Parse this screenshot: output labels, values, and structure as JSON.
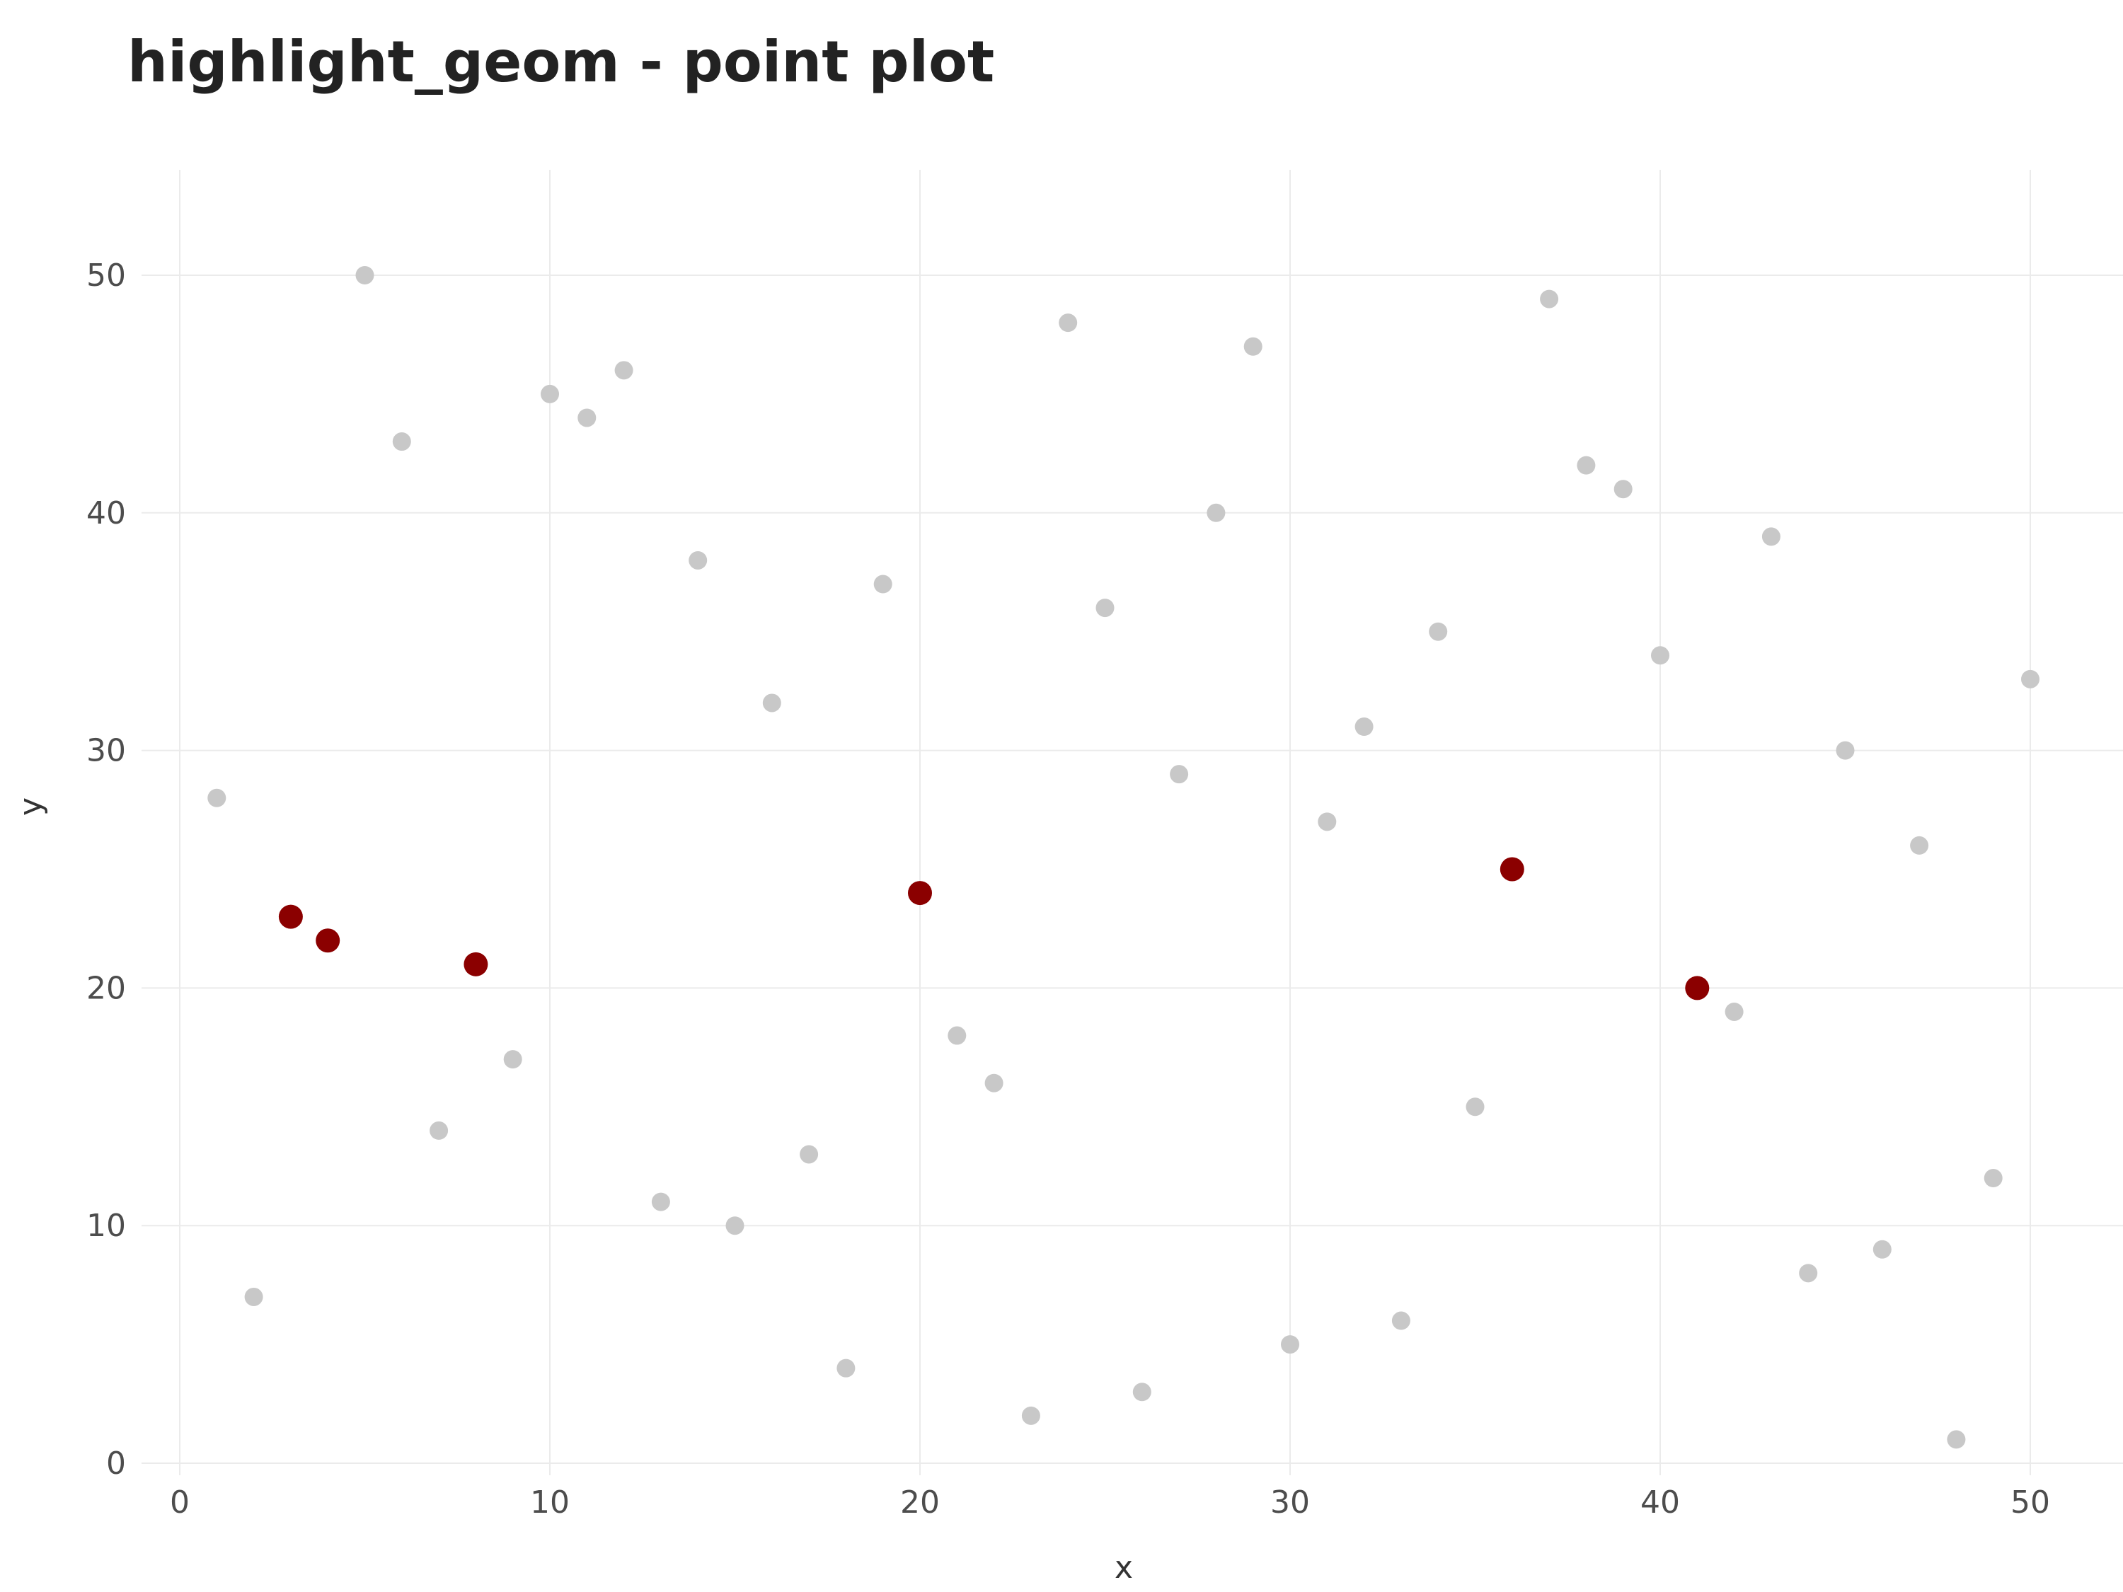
{
  "chart_data": {
    "type": "scatter",
    "title": "highlight_geom - point plot",
    "xlabel": "x",
    "ylabel": "y",
    "xlim": [
      -1,
      52
    ],
    "ylim": [
      0,
      52
    ],
    "x_ticks": [
      0,
      10,
      20,
      30,
      40,
      50
    ],
    "y_ticks": [
      0,
      10,
      20,
      30,
      40,
      50
    ],
    "grid": true,
    "colors": {
      "base": "#c8c8c8",
      "highlight": "#8b0000"
    },
    "highlighted_x": [
      3,
      4,
      8,
      20,
      36,
      41
    ],
    "points": [
      {
        "x": 1,
        "y": 28
      },
      {
        "x": 2,
        "y": 7
      },
      {
        "x": 3,
        "y": 23
      },
      {
        "x": 4,
        "y": 22
      },
      {
        "x": 5,
        "y": 50
      },
      {
        "x": 6,
        "y": 43
      },
      {
        "x": 7,
        "y": 14
      },
      {
        "x": 8,
        "y": 21
      },
      {
        "x": 9,
        "y": 17
      },
      {
        "x": 10,
        "y": 45
      },
      {
        "x": 11,
        "y": 44
      },
      {
        "x": 12,
        "y": 46
      },
      {
        "x": 13,
        "y": 11
      },
      {
        "x": 14,
        "y": 38
      },
      {
        "x": 15,
        "y": 10
      },
      {
        "x": 16,
        "y": 32
      },
      {
        "x": 17,
        "y": 13
      },
      {
        "x": 18,
        "y": 4
      },
      {
        "x": 19,
        "y": 37
      },
      {
        "x": 20,
        "y": 24
      },
      {
        "x": 21,
        "y": 18
      },
      {
        "x": 22,
        "y": 16
      },
      {
        "x": 23,
        "y": 2
      },
      {
        "x": 24,
        "y": 48
      },
      {
        "x": 25,
        "y": 36
      },
      {
        "x": 26,
        "y": 3
      },
      {
        "x": 27,
        "y": 29
      },
      {
        "x": 28,
        "y": 40
      },
      {
        "x": 29,
        "y": 47
      },
      {
        "x": 30,
        "y": 5
      },
      {
        "x": 31,
        "y": 27
      },
      {
        "x": 32,
        "y": 31
      },
      {
        "x": 33,
        "y": 6
      },
      {
        "x": 34,
        "y": 35
      },
      {
        "x": 35,
        "y": 15
      },
      {
        "x": 36,
        "y": 25
      },
      {
        "x": 37,
        "y": 49
      },
      {
        "x": 38,
        "y": 42
      },
      {
        "x": 39,
        "y": 41
      },
      {
        "x": 40,
        "y": 34
      },
      {
        "x": 41,
        "y": 20
      },
      {
        "x": 42,
        "y": 19
      },
      {
        "x": 43,
        "y": 39
      },
      {
        "x": 44,
        "y": 8
      },
      {
        "x": 45,
        "y": 30
      },
      {
        "x": 46,
        "y": 9
      },
      {
        "x": 47,
        "y": 26
      },
      {
        "x": 48,
        "y": 1
      },
      {
        "x": 49,
        "y": 12
      },
      {
        "x": 50,
        "y": 33
      }
    ]
  }
}
